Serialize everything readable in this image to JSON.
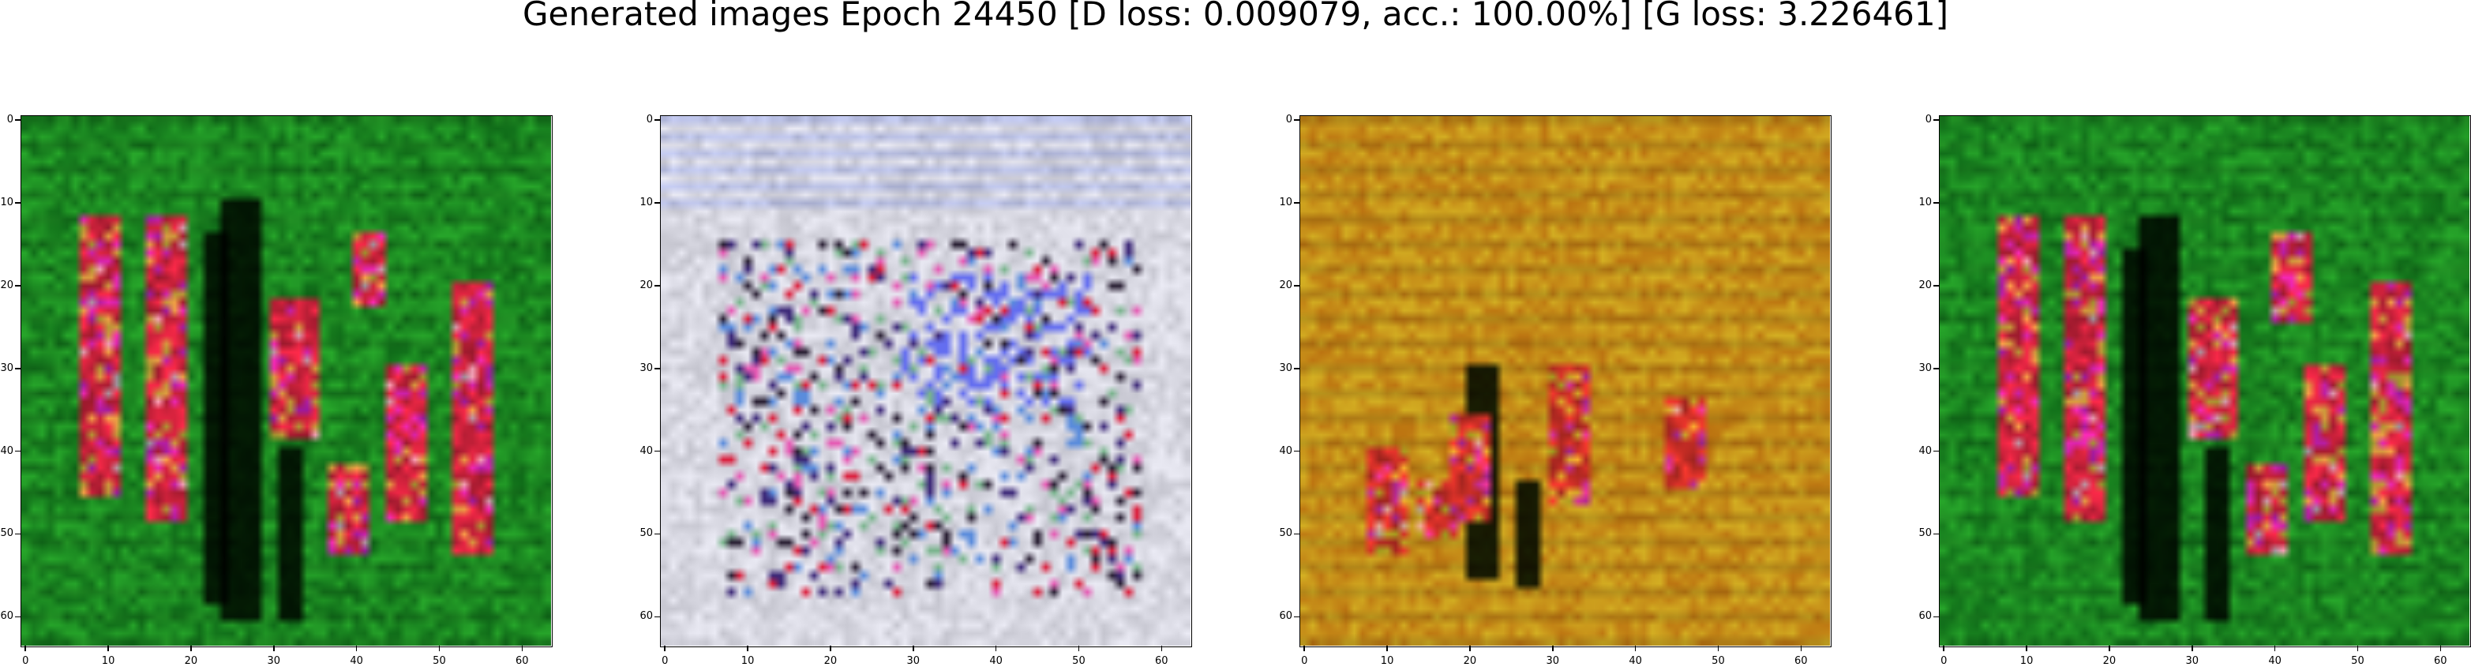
{
  "figure": {
    "title": "Generated images Epoch 24450 [D loss: 0.009079, acc.: 100.00%] [G loss: 3.226461]"
  },
  "axes_ticks": {
    "x": [
      "0",
      "10",
      "20",
      "30",
      "40",
      "50",
      "60"
    ],
    "y": [
      "0",
      "10",
      "20",
      "30",
      "40",
      "50",
      "60"
    ]
  },
  "image_grid_size": 64,
  "panels": [
    {
      "id": "panel-1",
      "description_palette": "green",
      "base": "#1c8a22",
      "stroke": "#ff2a4a"
    },
    {
      "id": "panel-2",
      "description_palette": "light-gray",
      "base": "#d8d8e2",
      "stroke": "#ff3a6a"
    },
    {
      "id": "panel-3",
      "description_palette": "amber",
      "base": "#c8921a",
      "stroke": "#ff3a30"
    },
    {
      "id": "panel-4",
      "description_palette": "green",
      "base": "#1c8a22",
      "stroke": "#ff2a4a"
    }
  ]
}
